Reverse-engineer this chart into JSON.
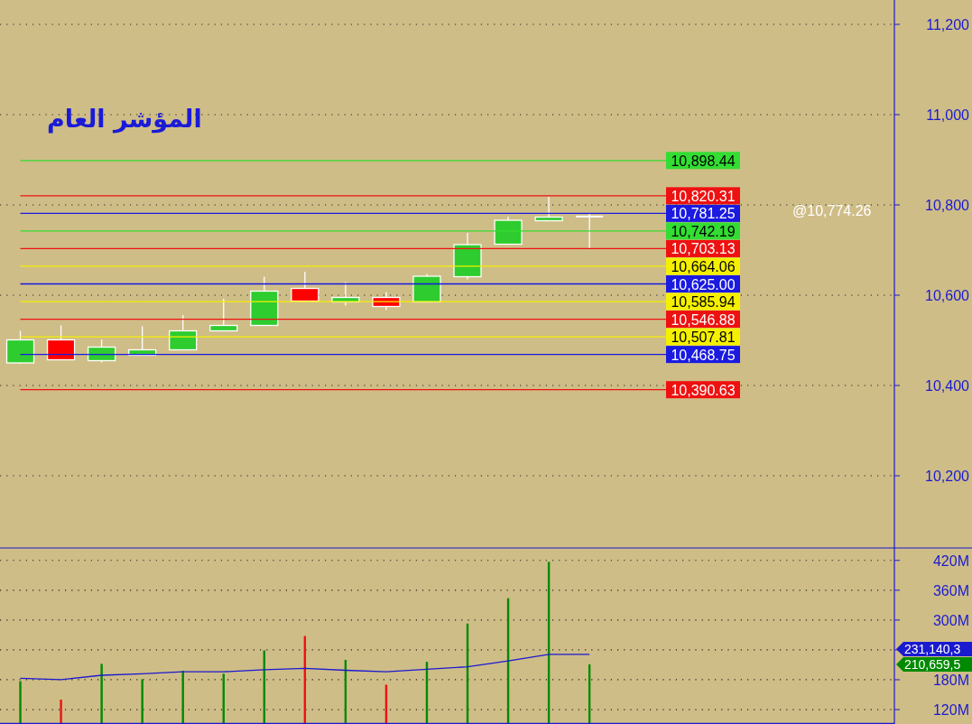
{
  "chart_data": [
    {
      "type": "candlestick",
      "title": "المؤشر العام",
      "categories": [
        null,
        null,
        null,
        null,
        null,
        null,
        null,
        null,
        null,
        null,
        null,
        null,
        null,
        null,
        null,
        null,
        null,
        null,
        null,
        null,
        null,
        null
      ],
      "ohlc": [
        [
          10450,
          10521,
          10448,
          10501
        ],
        [
          10501,
          10533,
          10457,
          10457
        ],
        [
          10455,
          10502,
          10451,
          10485
        ],
        [
          10467,
          10531,
          10467,
          10479
        ],
        [
          10479,
          10556,
          10479,
          10521
        ],
        [
          10521,
          10592,
          10521,
          10533
        ],
        [
          10533,
          10641,
          10533,
          10609
        ],
        [
          10615,
          10652,
          10587,
          10587
        ],
        [
          10585,
          10629,
          10577,
          10595
        ],
        [
          10595,
          10607,
          10567,
          10575
        ],
        [
          10585,
          10647,
          10585,
          10642
        ],
        [
          10641,
          10738,
          10635,
          10712
        ],
        [
          10713,
          10774,
          10713,
          10766
        ],
        [
          10765,
          10818,
          10765,
          10773
        ],
        [
          10774.26,
          10781,
          10703,
          10774.26
        ],
        null,
        null,
        null,
        null,
        null,
        null,
        null
      ],
      "ylim": [
        10040,
        11254
      ],
      "yticks": [
        {
          "value": 10200,
          "label": "10,200"
        },
        {
          "value": 10400,
          "label": "10,400"
        },
        {
          "value": 10600,
          "label": "10,600"
        },
        {
          "value": 10800,
          "label": "10,800"
        },
        {
          "value": 11000,
          "label": "11,000"
        },
        {
          "value": 11200,
          "label": "11,200"
        }
      ],
      "grid": "y",
      "ref_lines": [
        {
          "axis": "y",
          "value": 10898.44,
          "label": "10,898.44",
          "color": "#33dd33"
        },
        {
          "axis": "y",
          "value": 10820.31,
          "label": "10,820.31",
          "color": "#ee1111"
        },
        {
          "axis": "y",
          "value": 10781.25,
          "label": "10,781.25",
          "color": "#1a1ae0"
        },
        {
          "axis": "y",
          "value": 10742.19,
          "label": "10,742.19",
          "color": "#33dd33"
        },
        {
          "axis": "y",
          "value": 10703.13,
          "label": "10,703.13",
          "color": "#ee1111"
        },
        {
          "axis": "y",
          "value": 10664.06,
          "label": "10,664.06",
          "color": "#f5f000"
        },
        {
          "axis": "y",
          "value": 10625.0,
          "label": "10,625.00",
          "color": "#1a1ae0"
        },
        {
          "axis": "y",
          "value": 10585.94,
          "label": "10,585.94",
          "color": "#f5f000"
        },
        {
          "axis": "y",
          "value": 10546.88,
          "label": "10,546.88",
          "color": "#ee1111"
        },
        {
          "axis": "y",
          "value": 10507.81,
          "label": "10,507.81",
          "color": "#f5f000"
        },
        {
          "axis": "y",
          "value": 10468.75,
          "label": "10,468.75",
          "color": "#1a1ae0"
        },
        {
          "axis": "y",
          "value": 10390.63,
          "label": "10,390.63",
          "color": "#ee1111"
        }
      ],
      "annotations": [
        "@10,774.26"
      ]
    },
    {
      "type": "bar",
      "categories": [
        null,
        null,
        null,
        null,
        null,
        null,
        null,
        null,
        null,
        null,
        null,
        null,
        null,
        null,
        null,
        null,
        null,
        null,
        null,
        null,
        null,
        null
      ],
      "series": [
        {
          "type": "bar",
          "colors": [
            "#008a00",
            "#ee1111",
            "#008a00",
            "#008a00",
            "#008a00",
            "#008a00",
            "#008a00",
            "#ee1111",
            "#008a00",
            "#ee1111",
            "#008a00",
            "#008a00",
            "#008a00",
            "#008a00",
            "#008a00",
            null,
            null,
            null,
            null,
            null,
            null,
            null
          ],
          "values": [
            177,
            140,
            212,
            181,
            198,
            192,
            239,
            268,
            220,
            170,
            216,
            293,
            344,
            417,
            211,
            null,
            null,
            null,
            null,
            null,
            null,
            null
          ]
        },
        {
          "type": "line",
          "color": "#1a1ad0",
          "values": [
            183,
            180,
            189,
            192,
            196,
            196,
            200,
            203,
            199,
            196,
            201,
            206,
            218,
            231,
            231,
            null,
            null,
            null,
            null,
            null,
            null,
            null
          ]
        }
      ],
      "ylim": [
        91,
        445
      ],
      "yticks": [
        {
          "value": 120,
          "label": "120M"
        },
        {
          "value": 180,
          "label": "180M"
        },
        {
          "value": 240,
          "label": null
        },
        {
          "value": 300,
          "label": "300M"
        },
        {
          "value": 360,
          "label": "360M"
        },
        {
          "value": 420,
          "label": "420M"
        }
      ],
      "grid": "y",
      "annotations": [
        "210,659,5",
        "231,140,3"
      ]
    }
  ]
}
